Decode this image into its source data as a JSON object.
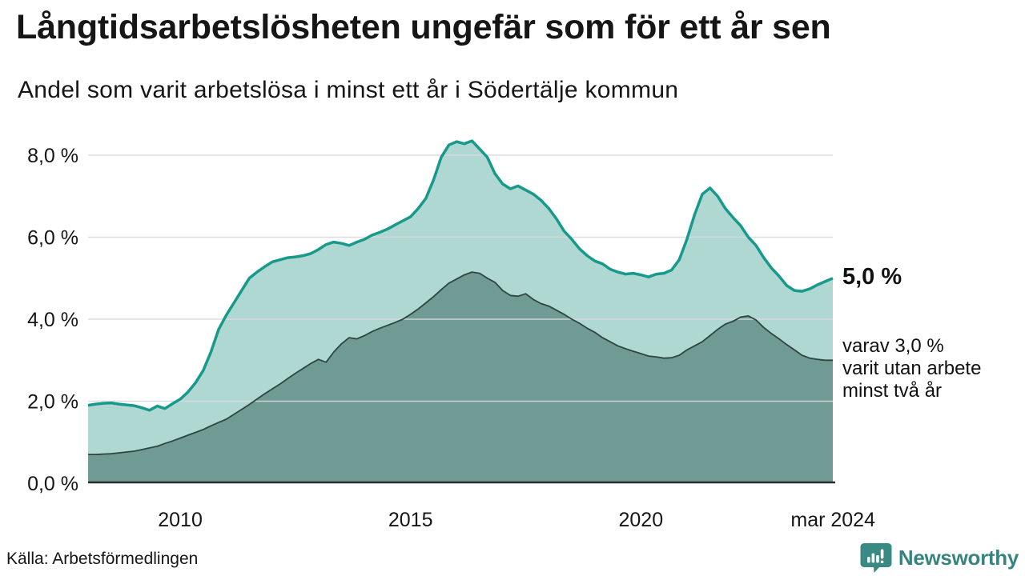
{
  "chart_data": {
    "type": "area",
    "title": "Långtidsarbetslösheten ungefär som för ett år sen",
    "subtitle": "Andel som varit arbetslösa i minst ett år i Södertälje kommun",
    "x_start_year": 2008,
    "points_per_year": 6,
    "x_end_label": "mar 2024",
    "ylim": [
      0,
      8.6
    ],
    "grid": "horizontal",
    "grid_color": "#d9dade",
    "axis_color": "#2b2b2b",
    "yticks": [
      {
        "value": 0,
        "label": "0,0 %"
      },
      {
        "value": 2,
        "label": "2,0 %"
      },
      {
        "value": 4,
        "label": "4,0 %"
      },
      {
        "value": 6,
        "label": "6,0 %"
      },
      {
        "value": 8,
        "label": "8,0 %"
      }
    ],
    "xticks": [
      {
        "value": 2010,
        "label": "2010"
      },
      {
        "value": 2015,
        "label": "2015"
      },
      {
        "value": 2020,
        "label": "2020"
      },
      {
        "value": 2024.17,
        "label": "mar 2024"
      }
    ],
    "series": [
      {
        "name": "Andel som varit arbetslösa i minst ett år",
        "color": "#17998b",
        "fill": "#aed8d1",
        "line_width": 3.5,
        "end_value": "5,0 %",
        "values": [
          1.9,
          1.93,
          1.95,
          1.96,
          1.93,
          1.91,
          1.89,
          1.84,
          1.78,
          1.88,
          1.82,
          1.94,
          2.05,
          2.22,
          2.45,
          2.75,
          3.2,
          3.75,
          4.1,
          4.4,
          4.7,
          5.0,
          5.15,
          5.28,
          5.4,
          5.45,
          5.5,
          5.52,
          5.55,
          5.6,
          5.7,
          5.82,
          5.88,
          5.85,
          5.8,
          5.88,
          5.95,
          6.05,
          6.12,
          6.2,
          6.3,
          6.4,
          6.5,
          6.7,
          6.95,
          7.4,
          7.95,
          8.25,
          8.33,
          8.28,
          8.35,
          8.15,
          7.95,
          7.55,
          7.3,
          7.18,
          7.25,
          7.15,
          7.05,
          6.9,
          6.7,
          6.45,
          6.15,
          5.95,
          5.72,
          5.55,
          5.42,
          5.35,
          5.22,
          5.15,
          5.1,
          5.12,
          5.08,
          5.03,
          5.1,
          5.12,
          5.2,
          5.45,
          5.95,
          6.55,
          7.05,
          7.2,
          7.0,
          6.7,
          6.48,
          6.28,
          6.0,
          5.8,
          5.5,
          5.25,
          5.05,
          4.82,
          4.7,
          4.68,
          4.74,
          4.84,
          4.92,
          5.0
        ]
      },
      {
        "name": "varav utan arbete minst två år",
        "color": "#2e463f",
        "fill": "#6f9b94",
        "line_width": 1.8,
        "end_value": "3,0 %",
        "values": [
          0.7,
          0.7,
          0.71,
          0.72,
          0.74,
          0.76,
          0.78,
          0.82,
          0.86,
          0.9,
          0.97,
          1.03,
          1.1,
          1.17,
          1.24,
          1.31,
          1.4,
          1.48,
          1.56,
          1.68,
          1.8,
          1.92,
          2.05,
          2.18,
          2.3,
          2.42,
          2.55,
          2.68,
          2.8,
          2.92,
          3.02,
          2.95,
          3.2,
          3.4,
          3.55,
          3.52,
          3.6,
          3.7,
          3.78,
          3.85,
          3.92,
          4.0,
          4.12,
          4.25,
          4.4,
          4.55,
          4.72,
          4.88,
          4.98,
          5.08,
          5.15,
          5.12,
          5.0,
          4.9,
          4.7,
          4.58,
          4.56,
          4.62,
          4.48,
          4.38,
          4.32,
          4.22,
          4.12,
          4.0,
          3.9,
          3.78,
          3.68,
          3.55,
          3.45,
          3.35,
          3.28,
          3.22,
          3.16,
          3.1,
          3.08,
          3.05,
          3.06,
          3.12,
          3.25,
          3.35,
          3.45,
          3.6,
          3.75,
          3.88,
          3.95,
          4.05,
          4.08,
          3.98,
          3.8,
          3.65,
          3.52,
          3.38,
          3.25,
          3.12,
          3.05,
          3.02,
          3.0,
          3.0
        ]
      }
    ],
    "annotations": {
      "end_value_label": "5,0 %",
      "sub_label_lines": [
        "varav 3,0 %",
        "varit utan arbete",
        "minst två år"
      ]
    }
  },
  "footer": {
    "source": "Källa: Arbetsförmedlingen",
    "brand": "Newsworthy",
    "brand_color": "#37837d",
    "brand_icon_color": "#3a8a84"
  }
}
